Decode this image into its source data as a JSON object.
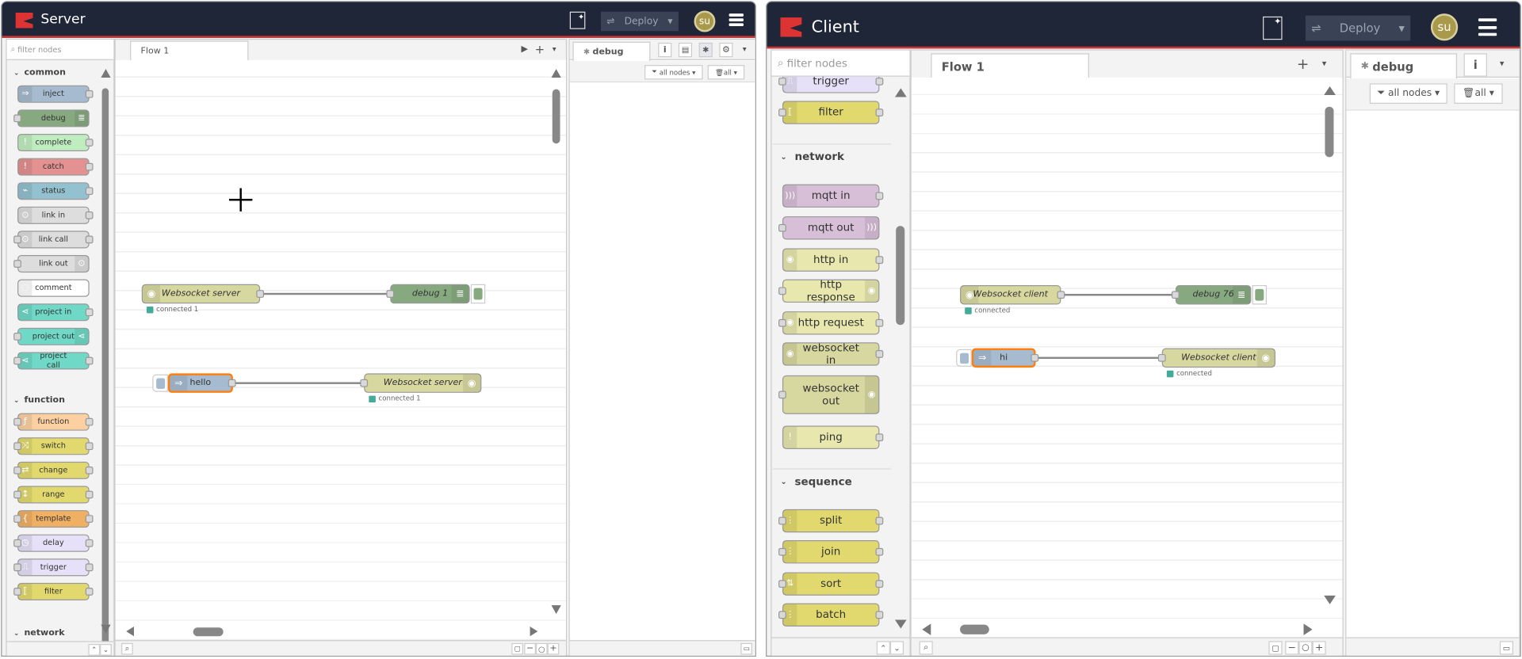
{
  "colors": {
    "header": "#1f2638",
    "accent": "#cc3333",
    "inject": "#a6bbcf",
    "debug": "#87a980",
    "complete": "#c0edc0",
    "catch": "#e49191",
    "status": "#94c1d0",
    "link": "#dddddd",
    "comment": "#ffffff",
    "project": "#6fd8c6",
    "function": "#fdd0a2",
    "yellow": "#e2d96e",
    "template": "#f0b064",
    "delay": "#e6e0f8",
    "mqtt": "#d8bfd8",
    "http": "#e7e7ae",
    "ws": "#d7d7a0"
  },
  "server": {
    "title": "Server",
    "deploy": "Deploy",
    "avatar": "su",
    "filter_placeholder": "filter nodes",
    "categories": [
      {
        "label": "common",
        "items": [
          {
            "label": "inject",
            "color": "inject",
            "in": false,
            "out": true,
            "icon": "arrow-icon"
          },
          {
            "label": "debug",
            "color": "debug",
            "in": true,
            "out": false,
            "icon": "list-icon",
            "iconRight": true
          },
          {
            "label": "complete",
            "color": "complete",
            "in": false,
            "out": true,
            "icon": "exclamation-icon"
          },
          {
            "label": "catch",
            "color": "catch",
            "in": false,
            "out": true,
            "icon": "exclamation-icon"
          },
          {
            "label": "status",
            "color": "status",
            "in": false,
            "out": true,
            "icon": "pulse-icon"
          },
          {
            "label": "link in",
            "color": "link",
            "in": false,
            "out": true,
            "icon": "link-icon"
          },
          {
            "label": "link call",
            "color": "link",
            "in": true,
            "out": true,
            "icon": "link-icon"
          },
          {
            "label": "link out",
            "color": "link",
            "in": true,
            "out": false,
            "icon": "link-icon",
            "iconRight": true
          },
          {
            "label": "comment",
            "color": "comment",
            "in": false,
            "out": false,
            "icon": "comment-icon"
          },
          {
            "label": "project in",
            "color": "project",
            "in": false,
            "out": true,
            "icon": "project-icon"
          },
          {
            "label": "project out",
            "color": "project",
            "in": true,
            "out": false,
            "icon": "project-icon",
            "iconRight": true
          },
          {
            "label": "project call",
            "color": "project",
            "in": true,
            "out": true,
            "icon": "project-icon"
          }
        ]
      },
      {
        "label": "function",
        "items": [
          {
            "label": "function",
            "color": "function",
            "in": true,
            "out": true,
            "icon": "function-icon"
          },
          {
            "label": "switch",
            "color": "yellow",
            "in": true,
            "out": true,
            "icon": "switch-icon"
          },
          {
            "label": "change",
            "color": "yellow",
            "in": true,
            "out": true,
            "icon": "change-icon"
          },
          {
            "label": "range",
            "color": "yellow",
            "in": true,
            "out": true,
            "icon": "range-icon"
          },
          {
            "label": "template",
            "color": "template",
            "in": true,
            "out": true,
            "icon": "brace-icon"
          },
          {
            "label": "delay",
            "color": "delay",
            "in": true,
            "out": true,
            "icon": "clock-icon"
          },
          {
            "label": "trigger",
            "color": "delay",
            "in": true,
            "out": true,
            "icon": "trigger-icon"
          },
          {
            "label": "filter",
            "color": "yellow",
            "in": true,
            "out": true,
            "icon": "filter-icon"
          }
        ]
      },
      {
        "label": "network",
        "items": []
      }
    ],
    "flow_tab": "Flow 1",
    "sidebar": {
      "tab": "debug",
      "filter_nodes": "all nodes",
      "clear": "all"
    },
    "nodes": [
      {
        "id": "s1",
        "label": "Websocket server",
        "color": "ws",
        "status": "connected 1",
        "in": false,
        "out": true
      },
      {
        "id": "s2",
        "label": "debug 1",
        "color": "debug",
        "in": true,
        "out": false
      },
      {
        "id": "s3",
        "label": "hello",
        "color": "inject",
        "in": false,
        "out": true,
        "selected": true
      },
      {
        "id": "s4",
        "label": "Websocket server",
        "color": "ws",
        "status": "connected 1",
        "in": true,
        "out": false
      }
    ]
  },
  "client": {
    "title": "Client",
    "deploy": "Deploy",
    "avatar": "su",
    "filter_placeholder": "filter nodes",
    "partial_items": [
      {
        "label": "trigger",
        "color": "delay",
        "in": true,
        "out": true,
        "icon": "trigger-icon"
      },
      {
        "label": "filter",
        "color": "yellow",
        "in": true,
        "out": true,
        "icon": "filter-icon"
      }
    ],
    "categories": [
      {
        "label": "network",
        "items": [
          {
            "label": "mqtt in",
            "color": "mqtt",
            "in": false,
            "out": true,
            "icon": "wifi-icon"
          },
          {
            "label": "mqtt out",
            "color": "mqtt",
            "in": true,
            "out": false,
            "icon": "wifi-icon",
            "iconRight": true
          },
          {
            "label": "http in",
            "color": "http",
            "in": false,
            "out": true,
            "icon": "globe-icon"
          },
          {
            "label": "http response",
            "color": "http",
            "in": true,
            "out": false,
            "icon": "globe-icon",
            "iconRight": true
          },
          {
            "label": "http request",
            "color": "http",
            "in": true,
            "out": true,
            "icon": "globe-icon"
          },
          {
            "label": "websocket in",
            "color": "ws",
            "in": false,
            "out": true,
            "icon": "globe-icon"
          },
          {
            "label": "websocket out",
            "color": "ws",
            "in": true,
            "out": false,
            "icon": "globe-icon",
            "iconRight": true,
            "tall": true
          },
          {
            "label": "ping",
            "color": "http",
            "in": false,
            "out": true,
            "icon": "exclamation-icon"
          }
        ]
      },
      {
        "label": "sequence",
        "items": [
          {
            "label": "split",
            "color": "yellow",
            "in": true,
            "out": true,
            "icon": "split-icon"
          },
          {
            "label": "join",
            "color": "yellow",
            "in": true,
            "out": true,
            "icon": "join-icon"
          },
          {
            "label": "sort",
            "color": "yellow",
            "in": true,
            "out": true,
            "icon": "sort-icon"
          },
          {
            "label": "batch",
            "color": "yellow",
            "in": true,
            "out": true,
            "icon": "batch-icon"
          }
        ]
      }
    ],
    "flow_tab": "Flow 1",
    "sidebar": {
      "tab": "debug",
      "filter_nodes": "all nodes",
      "clear": "all"
    },
    "nodes": [
      {
        "id": "c1",
        "label": "Websocket client",
        "color": "ws",
        "status": "connected",
        "in": false,
        "out": true
      },
      {
        "id": "c2",
        "label": "debug 76",
        "color": "debug",
        "in": true,
        "out": false
      },
      {
        "id": "c3",
        "label": "hi",
        "color": "inject",
        "in": false,
        "out": true,
        "selected": true
      },
      {
        "id": "c4",
        "label": "Websocket client",
        "color": "ws",
        "status": "connected",
        "in": true,
        "out": false
      }
    ]
  }
}
